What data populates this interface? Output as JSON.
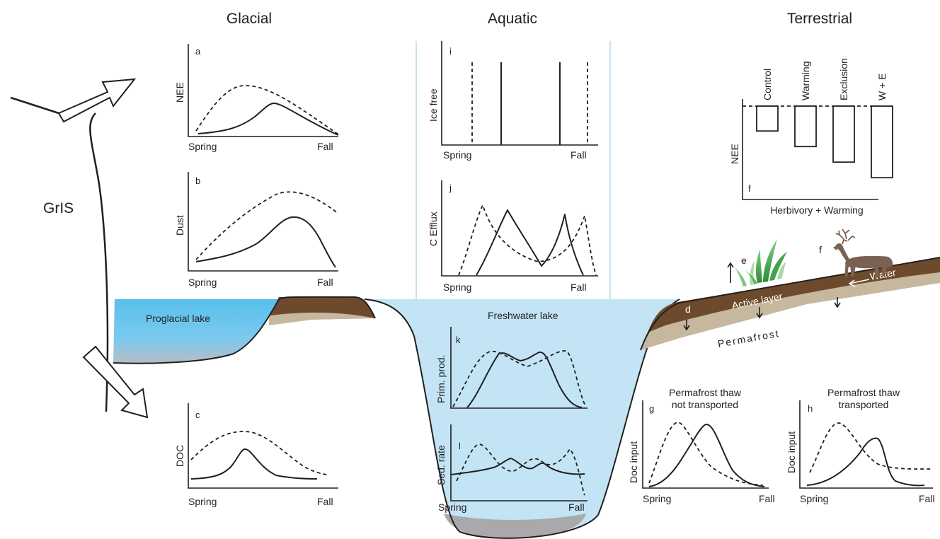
{
  "headers": {
    "glacial": "Glacial",
    "aquatic": "Aquatic",
    "terrestrial": "Terrestrial"
  },
  "landscape": {
    "gris": "GrIS",
    "proglacial_lake": "Proglacial lake",
    "freshwater_lake": "Freshwater lake",
    "active_layer": "Active layer",
    "permafrost": "Permafrost",
    "water": "Water",
    "letter_d": "d",
    "letter_e": "e",
    "letter_f": "f"
  },
  "common": {
    "spring": "Spring",
    "fall": "Fall"
  },
  "panels": {
    "a": {
      "letter": "a",
      "ylabel": "NEE"
    },
    "b": {
      "letter": "b",
      "ylabel": "Dust"
    },
    "c": {
      "letter": "c",
      "ylabel": "DOC"
    },
    "i": {
      "letter": "i",
      "ylabel": "Ice free"
    },
    "j": {
      "letter": "j",
      "ylabel": "C Efflux"
    },
    "k": {
      "letter": "k",
      "ylabel": "Prim. prod."
    },
    "l": {
      "letter": "l",
      "ylabel": "Sed. rate"
    },
    "g": {
      "letter": "g",
      "ylabel": "Doc input",
      "title_line1": "Permafrost thaw",
      "title_line2": "not transported"
    },
    "h": {
      "letter": "h",
      "ylabel": "Doc input",
      "title_line1": "Permafrost thaw",
      "title_line2": "transported"
    }
  },
  "chart_data": {
    "type": "bar",
    "title": "",
    "xlabel": "Herbivory + Warming",
    "ylabel": "NEE",
    "letter": "f",
    "categories": [
      "Control",
      "Warming",
      "Exclusion",
      "W + E"
    ],
    "values": [
      -1.6,
      -2.6,
      -3.6,
      -4.6
    ],
    "ylim": [
      -6,
      0
    ],
    "baseline": "dashed zero line"
  },
  "colors": {
    "ink": "#231f20",
    "lake": "#c2e4f5",
    "proglacial": "#5cc1ec",
    "soil": "#6e4a2d",
    "subsoil": "#c6b79f",
    "sediment": "#a9a9ab",
    "reindeer": "#7a6253",
    "grass": "#4caf4f",
    "panel_border": "#c7e3f2"
  }
}
